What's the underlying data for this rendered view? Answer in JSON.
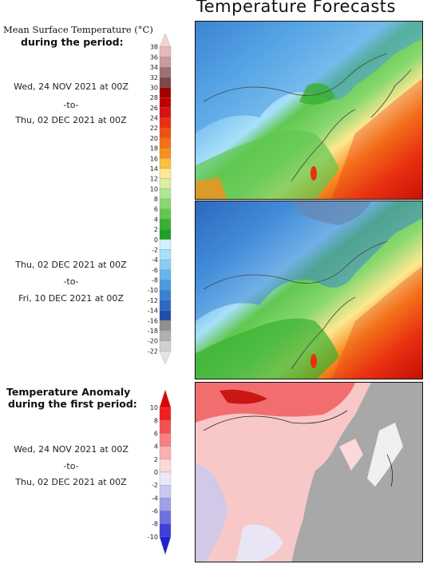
{
  "header": {
    "title": "Temperature Forecasts"
  },
  "panel_labels": {
    "mean_line1": "Mean Surface Temperature (°C)",
    "mean_line2": "during the period:",
    "anom_line1": "Temperature Anomaly",
    "anom_line2": "during the first period:"
  },
  "periods": {
    "p1": {
      "start": "Wed, 24 NOV 2021 at 00Z",
      "sep": "-to-",
      "end": "Thu, 02 DEC 2021 at 00Z"
    },
    "p2": {
      "start": "Thu, 02 DEC 2021 at 00Z",
      "sep": "-to-",
      "end": "Fri, 10 DEC 2021 at 00Z"
    },
    "p3": {
      "start": "Wed, 24 NOV 2021 at 00Z",
      "sep": "-to-",
      "end": "Thu, 02 DEC 2021 at 00Z"
    }
  },
  "temp_scale": {
    "ticks": [
      "38",
      "36",
      "34",
      "32",
      "30",
      "28",
      "26",
      "24",
      "22",
      "20",
      "18",
      "16",
      "14",
      "12",
      "10",
      "8",
      "6",
      "4",
      "2",
      "0",
      "-2",
      "-4",
      "-6",
      "-8",
      "-10",
      "-12",
      "-14",
      "-16",
      "-18",
      "-20",
      "-22"
    ],
    "colors": [
      "#f4d4d4",
      "#e8b8b8",
      "#c89c9c",
      "#a07070",
      "#7a4a4a",
      "#a00000",
      "#c00000",
      "#d81010",
      "#e83010",
      "#f05010",
      "#f47010",
      "#f89020",
      "#fac040",
      "#fce890",
      "#d8f0a0",
      "#b0e890",
      "#88d870",
      "#60c850",
      "#38b030",
      "#20a020",
      "#d0f0ff",
      "#a8e0fa",
      "#88ccf4",
      "#68b4ec",
      "#4a9ae0",
      "#3a80d4",
      "#2c68c4",
      "#2050a8",
      "#909090",
      "#b0b0b0",
      "#d0d0d0",
      "#e4e4e4"
    ]
  },
  "anom_scale": {
    "ticks": [
      "10",
      "8",
      "6",
      "4",
      "2",
      "0",
      "-2",
      "-4",
      "-6",
      "-8",
      "-10"
    ],
    "colors": [
      "#e00000",
      "#f02020",
      "#f45050",
      "#f88080",
      "#fab0b0",
      "#fcd8d8",
      "#e8e8f8",
      "#c8c8f0",
      "#a0a0e8",
      "#7070e0",
      "#4040d8",
      "#2020d0"
    ]
  },
  "colors": {
    "land_gray": "#a8a8a8",
    "ocean_gray": "#a0a0a0"
  }
}
